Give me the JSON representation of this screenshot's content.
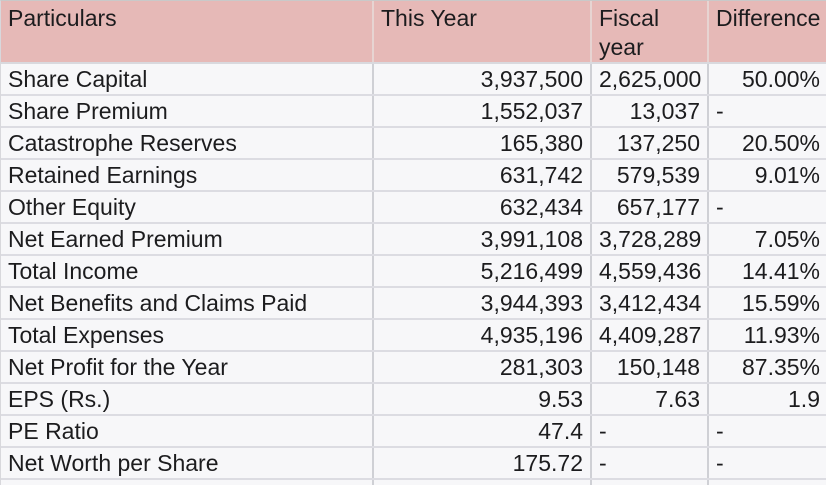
{
  "colors": {
    "header_bg": "#e6b9b7",
    "header_divider": "#e7d4d2",
    "cell_bg": "#f7f7f9",
    "grid_horizontal": "#dcdce2",
    "grid_vertical": "#cfd0d5",
    "text": "#1c1c1e"
  },
  "chart_data": {
    "type": "table",
    "columns": [
      "Particulars",
      "This Year",
      "Fiscal year",
      "Difference"
    ],
    "rows": [
      [
        "Share Capital",
        "3,937,500",
        "2,625,000",
        "50.00%"
      ],
      [
        "Share Premium",
        "1,552,037",
        "13,037",
        "-"
      ],
      [
        "Catastrophe Reserves",
        "165,380",
        "137,250",
        "20.50%"
      ],
      [
        "Retained Earnings",
        "631,742",
        "579,539",
        "9.01%"
      ],
      [
        "Other Equity",
        "632,434",
        "657,177",
        "-"
      ],
      [
        "Net Earned Premium",
        "3,991,108",
        "3,728,289",
        "7.05%"
      ],
      [
        "Total Income",
        "5,216,499",
        "4,559,436",
        "14.41%"
      ],
      [
        "Net Benefits and Claims Paid",
        "3,944,393",
        "3,412,434",
        "15.59%"
      ],
      [
        "Total Expenses",
        "4,935,196",
        "4,409,287",
        "11.93%"
      ],
      [
        "Net Profit for the Year",
        "281,303",
        "150,148",
        "87.35%"
      ],
      [
        "EPS (Rs.)",
        "9.53",
        "7.63",
        "1.9"
      ],
      [
        "PE Ratio",
        "47.4",
        "-",
        "-"
      ],
      [
        "Net Worth per Share",
        "175.72",
        "-",
        "-"
      ]
    ]
  }
}
